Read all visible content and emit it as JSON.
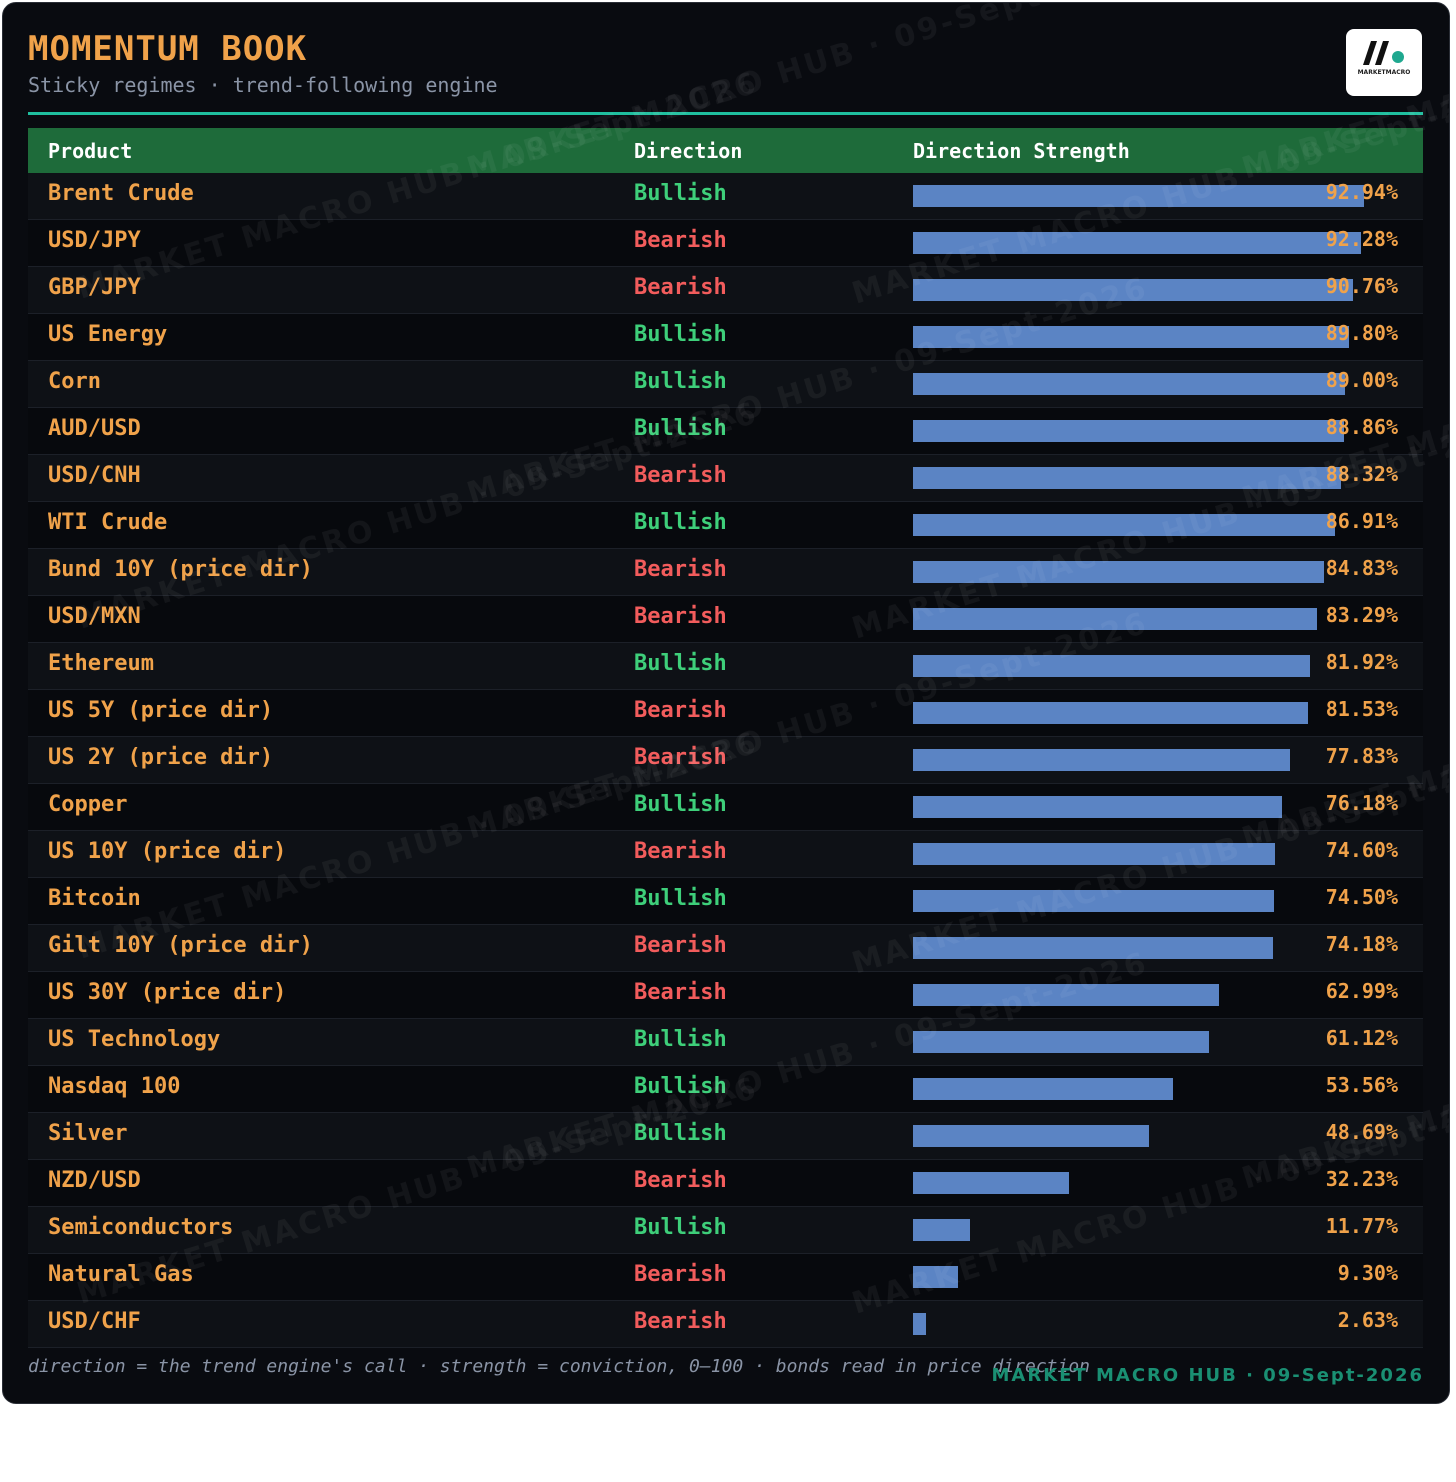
{
  "header": {
    "title": "MOMENTUM BOOK",
    "subtitle": "Sticky regimes · trend-following engine",
    "logo_text": "MARKETMACRO"
  },
  "watermark": "MARKET MACRO HUB · 09-Sept-2026",
  "table": {
    "columns": [
      "Product",
      "Direction",
      "Direction Strength"
    ]
  },
  "colors": {
    "bullish": "#3ecf7a",
    "bearish": "#f25c5c",
    "bar": "#5b84c4",
    "accent": "#f0a24a",
    "header_bg": "#1e6b3a",
    "rule": "#1fbf9f"
  },
  "chart_data": {
    "type": "bar",
    "orientation": "horizontal",
    "title": "MOMENTUM BOOK",
    "xlim": [
      0,
      100
    ],
    "categories": [
      "Brent Crude",
      "USD/JPY",
      "GBP/JPY",
      "US Energy",
      "Corn",
      "AUD/USD",
      "USD/CNH",
      "WTI Crude",
      "Bund 10Y (price dir)",
      "USD/MXN",
      "Ethereum",
      "US 5Y (price dir)",
      "US 2Y (price dir)",
      "Copper",
      "US 10Y (price dir)",
      "Bitcoin",
      "Gilt 10Y (price dir)",
      "US 30Y (price dir)",
      "US Technology",
      "Nasdaq 100",
      "Silver",
      "NZD/USD",
      "Semiconductors",
      "Natural Gas",
      "USD/CHF"
    ],
    "directions": [
      "Bullish",
      "Bearish",
      "Bearish",
      "Bullish",
      "Bullish",
      "Bullish",
      "Bearish",
      "Bullish",
      "Bearish",
      "Bearish",
      "Bullish",
      "Bearish",
      "Bearish",
      "Bullish",
      "Bearish",
      "Bullish",
      "Bearish",
      "Bearish",
      "Bullish",
      "Bullish",
      "Bullish",
      "Bearish",
      "Bullish",
      "Bearish",
      "Bearish"
    ],
    "values": [
      92.94,
      92.28,
      90.76,
      89.8,
      89.0,
      88.86,
      88.32,
      86.91,
      84.83,
      83.29,
      81.92,
      81.53,
      77.83,
      76.18,
      74.6,
      74.5,
      74.18,
      62.99,
      61.12,
      53.56,
      48.69,
      32.23,
      11.77,
      9.3,
      2.63
    ],
    "labels": [
      "92.94%",
      "92.28%",
      "90.76%",
      "89.80%",
      "89.00%",
      "88.86%",
      "88.32%",
      "86.91%",
      "84.83%",
      "83.29%",
      "81.92%",
      "81.53%",
      "77.83%",
      "76.18%",
      "74.60%",
      "74.50%",
      "74.18%",
      "62.99%",
      "61.12%",
      "53.56%",
      "48.69%",
      "32.23%",
      "11.77%",
      "9.30%",
      "2.63%"
    ]
  },
  "footer": {
    "note": "direction = the trend engine's call · strength = conviction, 0–100 · bonds read in price direction",
    "brand": "MARKET MACRO HUB · 09-Sept-2026"
  }
}
